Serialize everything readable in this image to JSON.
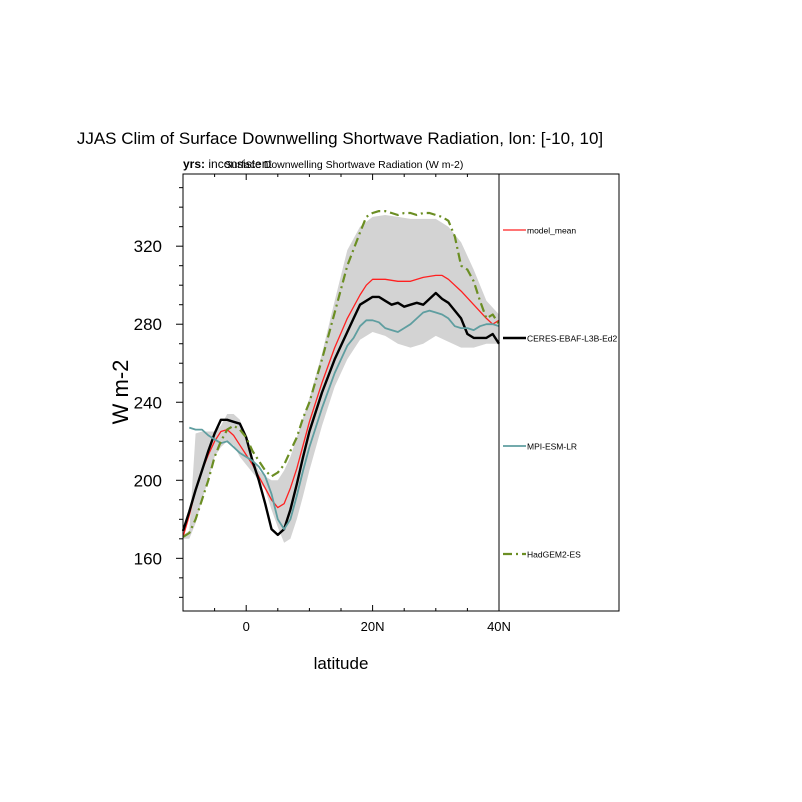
{
  "chart_data": {
    "type": "line",
    "title": "JJAS Clim of Surface Downwelling Shortwave Radiation, lon: [-10, 10]",
    "subtitle_left_label": "yrs:",
    "subtitle_left_value": "inconsistent",
    "subtitle_center": "Surface Downwelling Shortwave Radiation (W m-2)",
    "xlabel": "latitude",
    "ylabel": "W m-2",
    "xlim": [
      -10,
      40
    ],
    "ylim": [
      133,
      357
    ],
    "x_ticks": [
      {
        "value": 0,
        "label": "0"
      },
      {
        "value": 20,
        "label": "20N"
      },
      {
        "value": 40,
        "label": "40N"
      }
    ],
    "y_ticks": [
      {
        "value": 160,
        "label": "160"
      },
      {
        "value": 200,
        "label": "200"
      },
      {
        "value": 240,
        "label": "240"
      },
      {
        "value": 280,
        "label": "280"
      },
      {
        "value": 320,
        "label": "320"
      }
    ],
    "x_minor_step": 5,
    "y_minor_step": 10,
    "legend_position": "right",
    "spread_band": {
      "color": "#d3d3d3",
      "x": [
        -10,
        -9,
        -8,
        -7,
        -6,
        -5,
        -4,
        -3,
        -2,
        -1,
        0,
        1,
        2,
        3,
        4,
        5,
        6,
        7,
        8,
        9,
        10,
        12,
        14,
        16,
        18,
        20,
        22,
        24,
        26,
        28,
        30,
        32,
        34,
        36,
        38,
        40
      ],
      "lower": [
        170,
        170,
        178,
        190,
        200,
        212,
        217,
        220,
        218,
        212,
        208,
        204,
        200,
        195,
        185,
        176,
        168,
        170,
        180,
        192,
        205,
        228,
        248,
        262,
        272,
        276,
        274,
        270,
        268,
        270,
        274,
        271,
        268,
        268,
        270,
        270
      ],
      "upper": [
        172,
        174,
        224,
        225,
        225,
        225,
        228,
        234,
        234,
        231,
        220,
        212,
        205,
        202,
        200,
        200,
        205,
        212,
        222,
        232,
        242,
        265,
        292,
        318,
        330,
        335,
        336,
        335,
        334,
        334,
        334,
        330,
        322,
        308,
        292,
        285
      ]
    },
    "series": [
      {
        "name": "model_mean",
        "color": "#ff2020",
        "width": 1.3,
        "dash": "",
        "x": [
          -10,
          -9,
          -8,
          -7,
          -6,
          -5,
          -4,
          -3,
          -2,
          -1,
          0,
          1,
          2,
          3,
          4,
          5,
          6,
          7,
          8,
          9,
          10,
          12,
          14,
          16,
          18,
          19,
          20,
          22,
          24,
          26,
          28,
          30,
          31,
          32,
          34,
          36,
          38,
          39,
          40
        ],
        "y": [
          171,
          182,
          195,
          205,
          213,
          220,
          225,
          226,
          223,
          218,
          213,
          208,
          202,
          196,
          190,
          186,
          188,
          196,
          206,
          218,
          230,
          250,
          268,
          283,
          295,
          300,
          303,
          303,
          302,
          302,
          304,
          305,
          305,
          303,
          297,
          290,
          283,
          280,
          282
        ]
      },
      {
        "name": "CERES-EBAF-L3B-Ed2",
        "color": "#000000",
        "width": 2.4,
        "dash": "",
        "x": [
          -10,
          -9,
          -8,
          -7,
          -6,
          -5,
          -4,
          -3,
          -2,
          -1,
          0,
          1,
          2,
          3,
          4,
          5,
          6,
          7,
          8,
          9,
          10,
          12,
          14,
          16,
          17,
          18,
          19,
          20,
          21,
          22,
          23,
          24,
          25,
          26,
          27,
          28,
          29,
          30,
          31,
          32,
          33,
          34,
          35,
          36,
          37,
          38,
          39,
          40
        ],
        "y": [
          174,
          184,
          195,
          205,
          215,
          224,
          231,
          231,
          230,
          229,
          222,
          210,
          200,
          188,
          175,
          172,
          175,
          185,
          198,
          212,
          225,
          245,
          262,
          276,
          283,
          290,
          292,
          294,
          294,
          292,
          290,
          291,
          289,
          290,
          291,
          290,
          293,
          296,
          293,
          291,
          287,
          283,
          275,
          273,
          273,
          273,
          275,
          270
        ]
      },
      {
        "name": "MPI-ESM-LR",
        "color": "#5f9ea0",
        "width": 1.8,
        "dash": "",
        "x": [
          -9,
          -8,
          -7,
          -6,
          -5,
          -4,
          -3,
          -2,
          -1,
          0,
          1,
          2,
          3,
          4,
          5,
          6,
          7,
          8,
          9,
          10,
          12,
          14,
          16,
          17,
          18,
          19,
          20,
          21,
          22,
          23,
          24,
          25,
          26,
          27,
          28,
          29,
          30,
          31,
          32,
          33,
          34,
          35,
          36,
          37,
          38,
          39,
          40
        ],
        "y": [
          227,
          226,
          226,
          223,
          221,
          219,
          220,
          217,
          214,
          212,
          210,
          207,
          202,
          193,
          180,
          175,
          180,
          192,
          205,
          217,
          237,
          255,
          269,
          273,
          279,
          282,
          282,
          281,
          278,
          277,
          276,
          278,
          280,
          283,
          286,
          287,
          286,
          285,
          283,
          279,
          278,
          278,
          277,
          279,
          280,
          280,
          279
        ]
      },
      {
        "name": "HadGEM2-ES",
        "color": "#6b8e23",
        "width": 2.2,
        "dash": "9,4,2,4",
        "x": [
          -10,
          -9,
          -8,
          -7,
          -6,
          -5,
          -4,
          -3,
          -2,
          -1,
          0,
          1,
          2,
          3,
          4,
          5,
          6,
          7,
          8,
          9,
          10,
          12,
          14,
          16,
          18,
          19,
          20,
          21,
          22,
          23,
          24,
          25,
          26,
          27,
          28,
          29,
          30,
          31,
          32,
          33,
          34,
          35,
          36,
          37,
          38,
          39,
          40
        ],
        "y": [
          171,
          173,
          180,
          190,
          200,
          212,
          220,
          226,
          228,
          226,
          222,
          215,
          210,
          205,
          202,
          204,
          208,
          215,
          222,
          232,
          240,
          262,
          286,
          310,
          327,
          335,
          337,
          338,
          338,
          337,
          336,
          337,
          337,
          336,
          337,
          337,
          336,
          335,
          333,
          325,
          310,
          308,
          302,
          292,
          283,
          285,
          280
        ]
      }
    ]
  }
}
